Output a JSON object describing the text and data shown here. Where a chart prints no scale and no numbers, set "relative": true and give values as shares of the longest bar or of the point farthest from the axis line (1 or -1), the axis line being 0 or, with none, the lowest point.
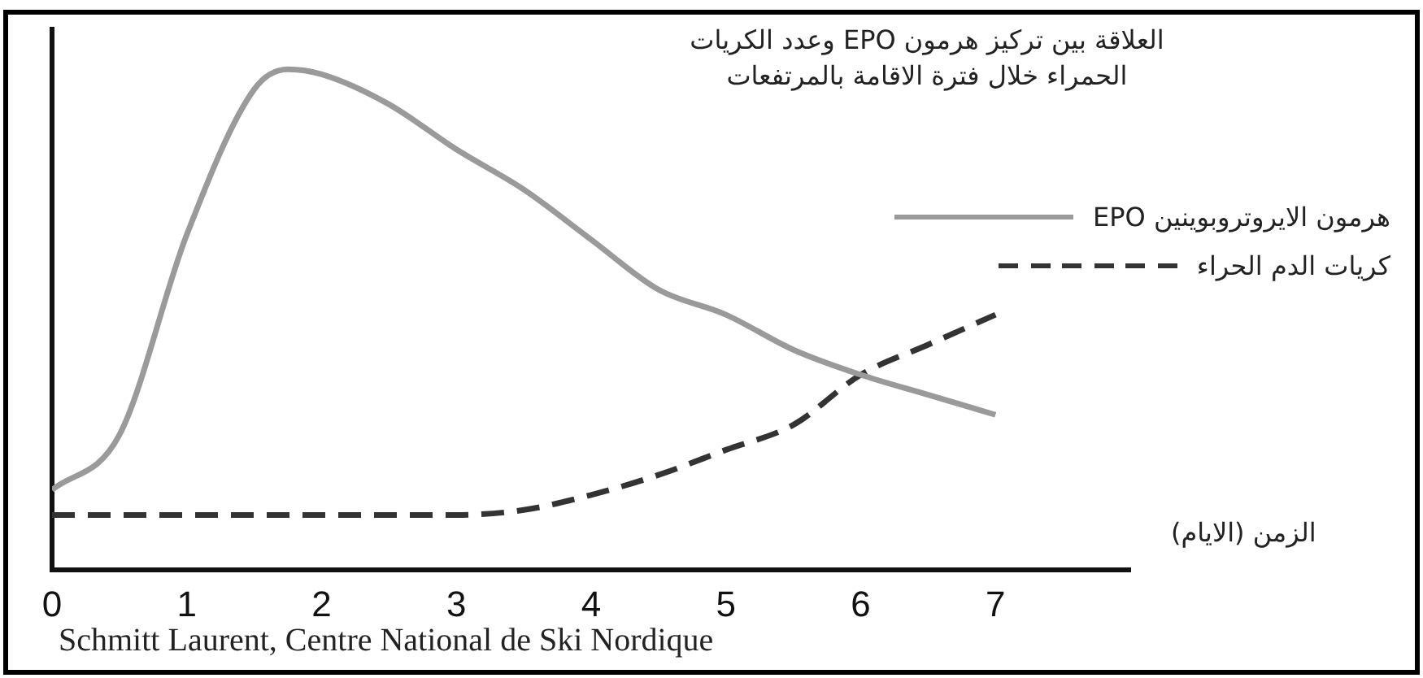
{
  "chart_data": {
    "type": "line",
    "title": "العلاقة بين تركيز هرمون EPO وعدد الكريات الحمراء خلال فترة الاقامة بالمرتفعات",
    "xlabel": "الزمن (الايام)",
    "relative": true,
    "xlim": [
      0,
      8
    ],
    "xticks": [
      0,
      1,
      2,
      3,
      4,
      5,
      6,
      7
    ],
    "grid": false,
    "legend": "right",
    "marker": "none",
    "annotations": [
      "Schmitt Laurent, Centre National de Ski Nordique"
    ],
    "x": [
      0,
      0.5,
      1,
      1.5,
      1.75,
      2,
      2.5,
      3,
      3.5,
      4,
      4.5,
      5,
      5.5,
      6,
      6.5,
      7
    ],
    "series": [
      {
        "name": "هرمون الايروتروبوينين EPO",
        "color": "#9a9a9a",
        "line_style": "solid",
        "values": [
          0.16,
          0.27,
          0.67,
          0.96,
          1,
          0.99,
          0.93,
          0.84,
          0.76,
          0.66,
          0.56,
          0.51,
          0.44,
          0.39,
          0.35,
          0.31
        ]
      },
      {
        "name": "كريات الدم الحراء",
        "color": "#333333",
        "line_style": "dashed",
        "values": [
          0.11,
          0.11,
          0.11,
          0.11,
          0.11,
          0.11,
          0.11,
          0.11,
          0.12,
          0.15,
          0.19,
          0.24,
          0.29,
          0.39,
          0.45,
          0.51
        ]
      }
    ]
  }
}
